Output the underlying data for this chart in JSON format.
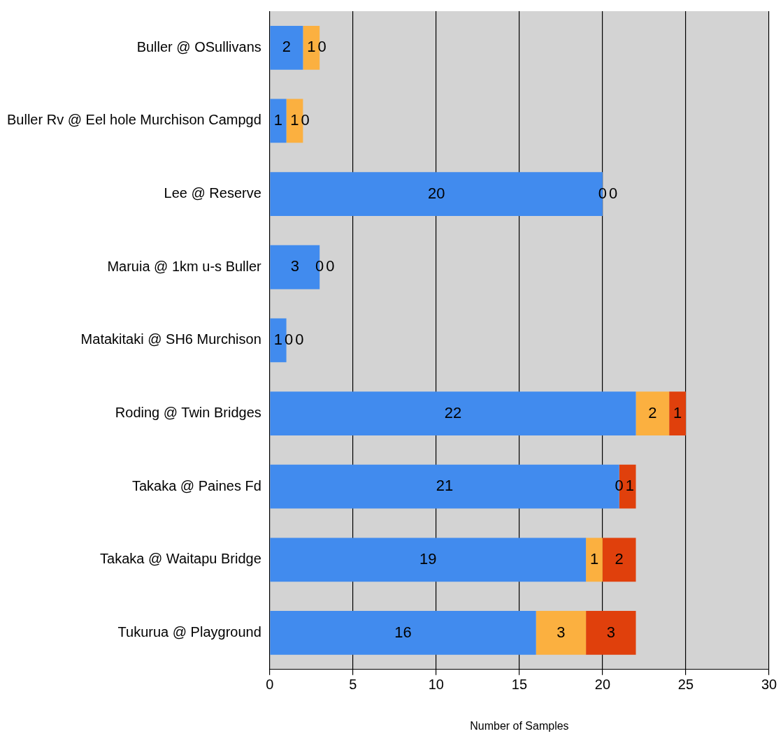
{
  "chart_data": {
    "type": "bar",
    "orientation": "horizontal",
    "stacked": true,
    "xlabel": "Number of Samples",
    "categories": [
      "Buller @ OSullivans",
      "Buller Rv @ Eel hole Murchison Campgd",
      "Lee @ Reserve",
      "Maruia @ 1km u-s Buller",
      "Matakitaki @ SH6 Murchison",
      "Roding @ Twin Bridges",
      "Takaka @ Paines Fd",
      "Takaka @ Waitapu Bridge",
      "Tukurua @ Playground"
    ],
    "series": [
      {
        "color": "#418bee",
        "values": [
          2,
          1,
          20,
          3,
          1,
          22,
          21,
          19,
          16
        ]
      },
      {
        "color": "#fbb040",
        "values": [
          1,
          1,
          0,
          0,
          0,
          2,
          0,
          1,
          3
        ]
      },
      {
        "color": "#e0400c",
        "values": [
          0,
          0,
          0,
          0,
          0,
          1,
          1,
          2,
          3
        ]
      }
    ],
    "xlim": [
      0,
      30
    ],
    "xticks": [
      0,
      5,
      10,
      15,
      20,
      25,
      30
    ],
    "grid": "x",
    "data_labels": true
  }
}
